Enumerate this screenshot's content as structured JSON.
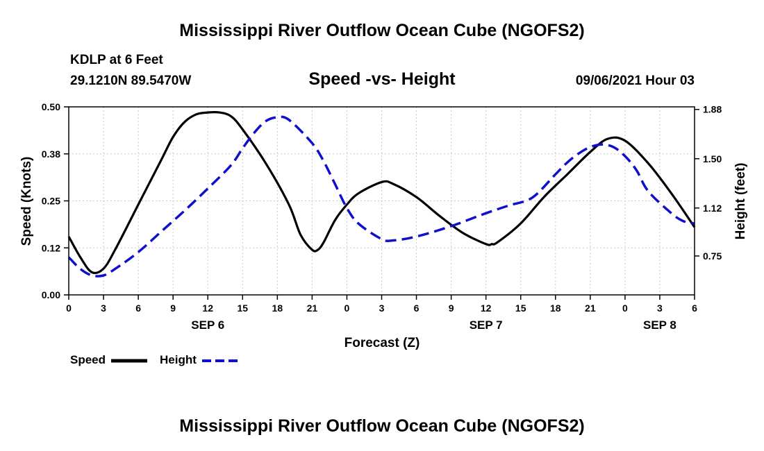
{
  "header": {
    "title_top": "Mississippi River Outflow Ocean Cube (NGOFS2)",
    "title_bottom": "Mississippi River Outflow Ocean Cube (NGOFS2)",
    "station": "KDLP at 6 Feet",
    "coords": "29.1210N  89.5470W",
    "subtitle": "Speed -vs- Height",
    "datetime": "09/06/2021 Hour 03"
  },
  "legend": {
    "speed_label": "Speed",
    "height_label": "Height"
  },
  "colors": {
    "speed": "#000000",
    "height": "#1010cc"
  },
  "chart_data": {
    "type": "line",
    "title": "Speed -vs- Height",
    "xlabel": "Forecast (Z)",
    "ylabel": "Speed (Knots)",
    "y2label": "Height (feet)",
    "xlim": [
      0,
      54
    ],
    "ylim": [
      0,
      0.5
    ],
    "y2lim": [
      0.45,
      1.9
    ],
    "x_tick_values": [
      0,
      3,
      6,
      9,
      12,
      15,
      18,
      21,
      24,
      27,
      30,
      33,
      36,
      39,
      42,
      45,
      48,
      51,
      54
    ],
    "x_tick_labels": [
      "0",
      "3",
      "6",
      "9",
      "12",
      "15",
      "18",
      "21",
      "0",
      "3",
      "6",
      "9",
      "12",
      "15",
      "18",
      "21",
      "0",
      "3",
      "6"
    ],
    "day_labels": [
      {
        "x": 12,
        "label": "SEP 6"
      },
      {
        "x": 36,
        "label": "SEP 7"
      },
      {
        "x": 51,
        "label": "SEP 8"
      }
    ],
    "y_tick_values": [
      0.0,
      0.125,
      0.25,
      0.375,
      0.5
    ],
    "y_tick_labels": [
      "0.00",
      "0.12",
      "0.25",
      "0.38",
      "0.50"
    ],
    "y2_tick_values": [
      0.75,
      1.12,
      1.5,
      1.88
    ],
    "y2_tick_labels": [
      "0.75",
      "1.12",
      "1.50",
      "1.88"
    ],
    "series": [
      {
        "name": "Speed",
        "axis": "left",
        "x": [
          0,
          1,
          2,
          3,
          4,
          6,
          8,
          9,
          10,
          11,
          12,
          13,
          14,
          15,
          17,
          19,
          20,
          21,
          21.5,
          22,
          23,
          24,
          25,
          27,
          28,
          30,
          32,
          34,
          36,
          36.5,
          37,
          39,
          41,
          43,
          45,
          46.5,
          48,
          50,
          52,
          54
        ],
        "values": [
          0.155,
          0.1,
          0.06,
          0.07,
          0.12,
          0.24,
          0.36,
          0.42,
          0.46,
          0.48,
          0.485,
          0.485,
          0.475,
          0.44,
          0.35,
          0.24,
          0.16,
          0.12,
          0.12,
          0.14,
          0.2,
          0.24,
          0.27,
          0.3,
          0.295,
          0.26,
          0.21,
          0.165,
          0.135,
          0.135,
          0.14,
          0.19,
          0.26,
          0.32,
          0.38,
          0.415,
          0.41,
          0.35,
          0.27,
          0.18
        ]
      },
      {
        "name": "Height",
        "axis": "right",
        "x": [
          0,
          1,
          2,
          3,
          4,
          6,
          8,
          10,
          12,
          14,
          15,
          16,
          17,
          18,
          19,
          21,
          22,
          23,
          24,
          25,
          27,
          28,
          30,
          33,
          36,
          38,
          40,
          42,
          43,
          44,
          45,
          46,
          47,
          48,
          49,
          50,
          52,
          53,
          54
        ],
        "values": [
          0.74,
          0.65,
          0.6,
          0.6,
          0.65,
          0.78,
          0.94,
          1.1,
          1.27,
          1.45,
          1.58,
          1.7,
          1.79,
          1.82,
          1.8,
          1.62,
          1.48,
          1.3,
          1.12,
          1.0,
          0.88,
          0.87,
          0.9,
          0.98,
          1.08,
          1.14,
          1.2,
          1.38,
          1.47,
          1.54,
          1.59,
          1.61,
          1.59,
          1.52,
          1.41,
          1.25,
          1.08,
          1.02,
          1.0
        ]
      }
    ]
  }
}
